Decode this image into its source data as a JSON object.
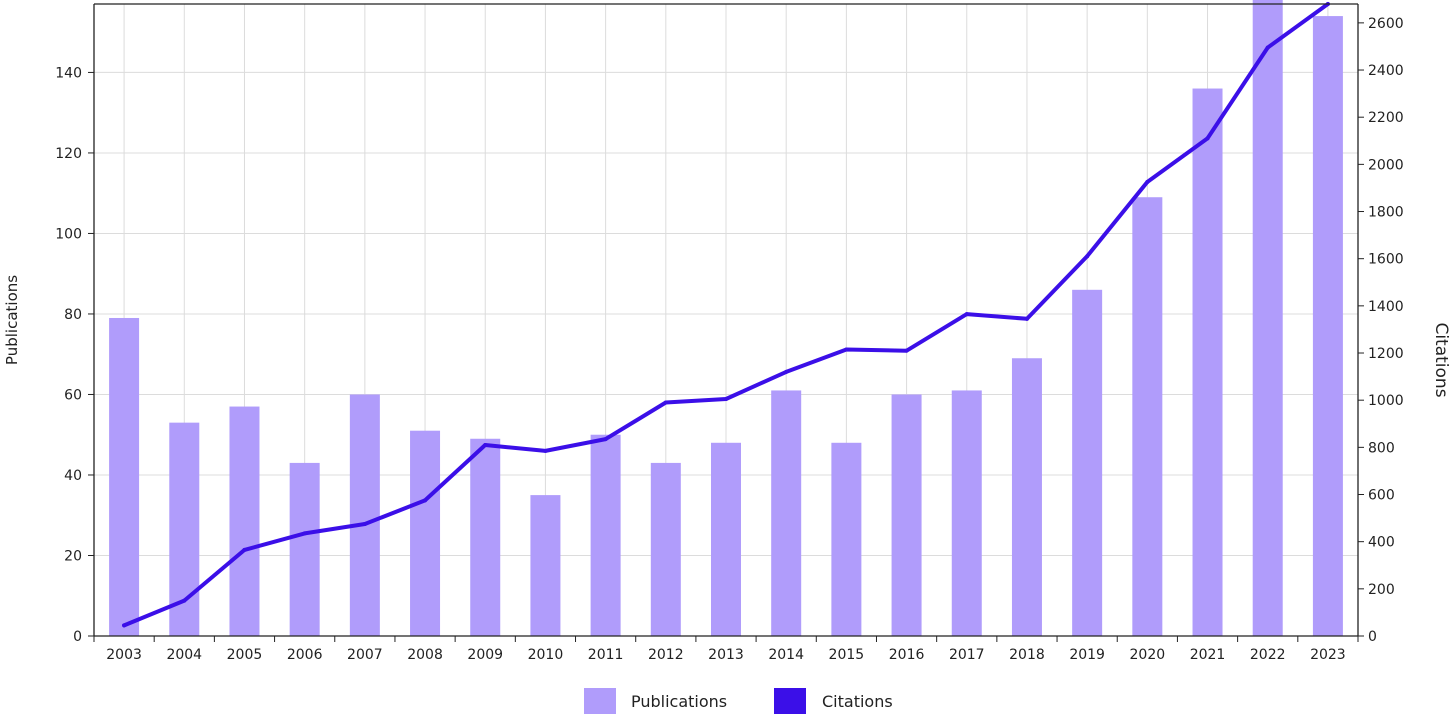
{
  "chart_data": {
    "type": "bar",
    "title": "",
    "categories": [
      "2003",
      "2004",
      "2005",
      "2006",
      "2007",
      "2008",
      "2009",
      "2010",
      "2011",
      "2012",
      "2013",
      "2014",
      "2015",
      "2016",
      "2017",
      "2018",
      "2019",
      "2020",
      "2021",
      "2022",
      "2023"
    ],
    "series": [
      {
        "name": "Publications",
        "type": "bar",
        "axis": "left",
        "color": "#B09CFB",
        "values": [
          79,
          53,
          57,
          43,
          60,
          51,
          49,
          35,
          50,
          43,
          48,
          61,
          48,
          60,
          61,
          69,
          86,
          109,
          136,
          158,
          154
        ]
      },
      {
        "name": "Citations",
        "type": "line",
        "axis": "right",
        "color": "#3B0FE8",
        "values": [
          45,
          150,
          365,
          435,
          475,
          575,
          810,
          785,
          835,
          990,
          1005,
          1120,
          1215,
          1210,
          1365,
          1345,
          1610,
          1925,
          2110,
          2495,
          2680
        ]
      }
    ],
    "xlabel": "",
    "ylabel": "Publications",
    "ylabel_right": "Citations",
    "ylim": [
      0,
      157
    ],
    "ylim_right": [
      0,
      2680
    ],
    "yticks": [
      0,
      20,
      40,
      60,
      80,
      100,
      120,
      140
    ],
    "yticks_right": [
      0,
      200,
      400,
      600,
      800,
      1000,
      1200,
      1400,
      1600,
      1800,
      2000,
      2200,
      2400,
      2600
    ],
    "grid": true,
    "legend": "bottom-center"
  }
}
